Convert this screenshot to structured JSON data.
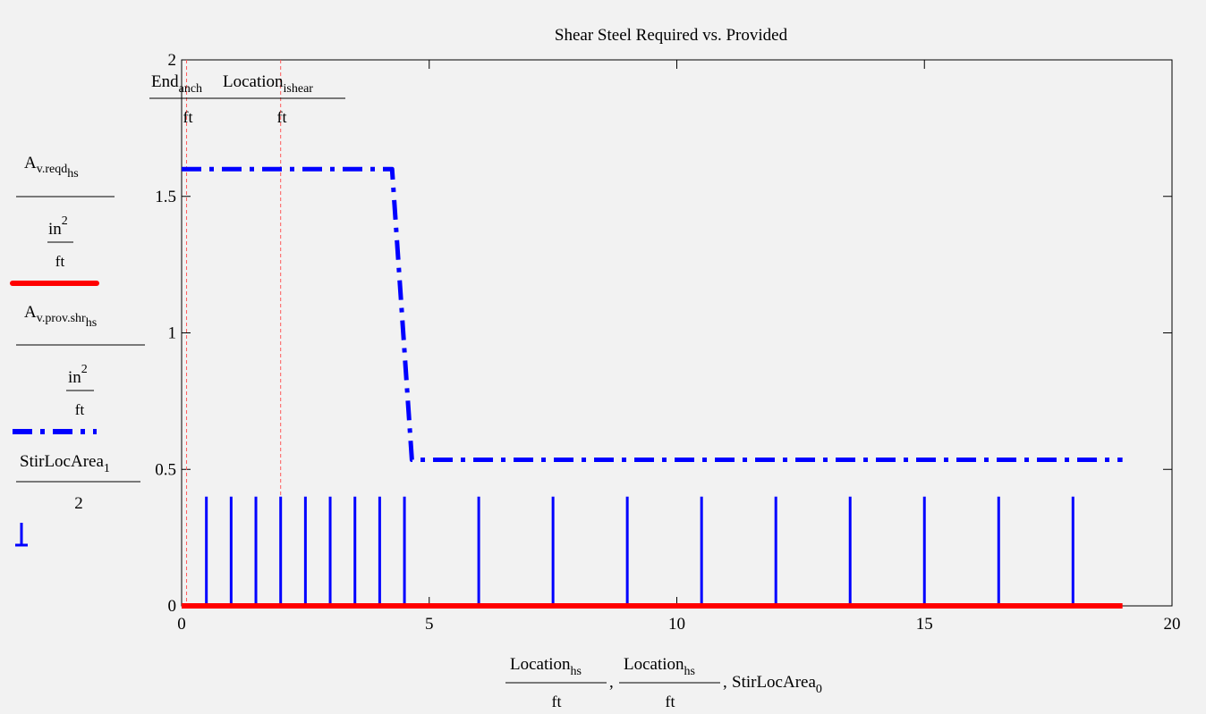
{
  "chart_data": {
    "type": "line",
    "title": "Shear Steel Required vs. Provided",
    "xlim": [
      0,
      20
    ],
    "ylim": [
      0,
      2
    ],
    "x_ticks": [
      "0",
      "5",
      "10",
      "15",
      "20"
    ],
    "y_ticks": [
      "0",
      "0.5",
      "1",
      "1.5",
      "2"
    ],
    "grid": false,
    "colors": {
      "required": "#ff0000",
      "provided": "#0000ff",
      "stirrups": "#0000ff",
      "markers": "#ff5a5a"
    },
    "legend": [
      {
        "num_main": "A",
        "num_sub": "v.reqd",
        "num_subsub": "hs",
        "den_main": "in",
        "den_sup": "2",
        "den_den": "ft"
      },
      {
        "num_main": "A",
        "num_sub": "v.prov.shr",
        "num_subsub": "hs",
        "den_main": "in",
        "den_sup": "2",
        "den_den": "ft"
      },
      {
        "num_main": "StirLocArea",
        "num_sub": "1",
        "den": "2"
      }
    ],
    "xlabel": {
      "t1_main": "Location",
      "t1_sub": "hs",
      "t1_den": "ft",
      "t2_main": "Location",
      "t2_sub": "hs",
      "t2_den": "ft",
      "t3_main": "StirLocArea",
      "t3_sub": "0",
      "sep": ","
    },
    "markers_label": {
      "m1_main": "End",
      "m1_sub": "anch",
      "m1_den": "ft",
      "m2_main": "Location",
      "m2_sub": "ishear",
      "m2_den": "ft"
    },
    "markers_x": [
      0.1,
      2.0
    ],
    "series": [
      {
        "x": [
          0,
          19
        ],
        "values": [
          0,
          0
        ]
      },
      {
        "x": [
          0,
          4.25,
          4.65,
          19
        ],
        "values": [
          1.6,
          1.6,
          0.535,
          0.535
        ]
      }
    ],
    "stirrups": {
      "x": [
        0.5,
        1,
        1.5,
        2,
        2.5,
        3,
        3.5,
        4,
        4.5,
        6,
        7.5,
        9,
        10.5,
        12,
        13.5,
        15,
        16.5,
        18
      ],
      "values": [
        0.4,
        0.4,
        0.4,
        0.4,
        0.4,
        0.4,
        0.4,
        0.4,
        0.4,
        0.4,
        0.4,
        0.4,
        0.4,
        0.4,
        0.4,
        0.4,
        0.4,
        0.4
      ]
    }
  }
}
